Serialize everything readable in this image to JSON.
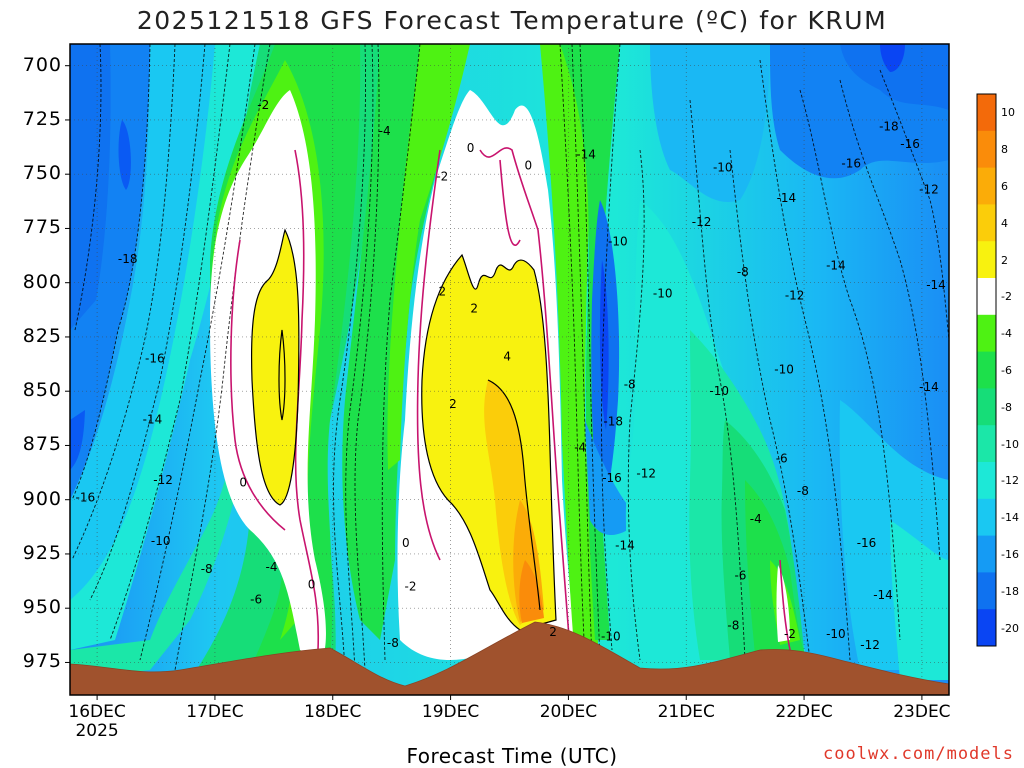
{
  "chart_data": {
    "type": "heatmap",
    "title": "2025121518 GFS Forecast Temperature (ºC) for KRUM",
    "xlabel": "Forecast Time (UTC)",
    "ylabel": "",
    "credit": "coolwx.com/models",
    "y_scale": "pressure (inverted)",
    "y_ticks": [
      "700",
      "725",
      "750",
      "775",
      "800",
      "825",
      "850",
      "875",
      "900",
      "925",
      "950",
      "975"
    ],
    "y_values": [
      700,
      725,
      750,
      775,
      800,
      825,
      850,
      875,
      900,
      925,
      950,
      975
    ],
    "ylim": [
      990,
      690
    ],
    "x_ticks": [
      "16DEC",
      "17DEC",
      "18DEC",
      "19DEC",
      "20DEC",
      "21DEC",
      "22DEC",
      "23DEC"
    ],
    "x_year": "2025",
    "x_days": [
      0,
      1,
      2,
      3,
      4,
      5,
      6,
      7
    ],
    "xlim": [
      -0.23,
      7.23
    ],
    "grid": true,
    "colorbar": {
      "labels": [
        "10",
        "8",
        "6",
        "4",
        "2",
        "-2",
        "-4",
        "-6",
        "-8",
        "-10",
        "-12",
        "-14",
        "-16",
        "-18",
        "-20"
      ],
      "colors": [
        "#f36a0a",
        "#fa8c0a",
        "#fbac08",
        "#fbcd0a",
        "#f8f20f",
        "#ffffff",
        "#4ef213",
        "#1de04b",
        "#16dd78",
        "#1be7a8",
        "#1de8d7",
        "#1ac8f2",
        "#159bf4",
        "#0f72f0",
        "#0a45f3"
      ]
    },
    "contour_labels": [
      {
        "text": "-18",
        "day": 0.26,
        "hPa": 789
      },
      {
        "text": "-16",
        "day": 0.49,
        "hPa": 835
      },
      {
        "text": "-14",
        "day": 0.47,
        "hPa": 863
      },
      {
        "text": "-12",
        "day": 0.56,
        "hPa": 891
      },
      {
        "text": "-10",
        "day": 0.54,
        "hPa": 919
      },
      {
        "text": "-16",
        "day": -0.1,
        "hPa": 899
      },
      {
        "text": "-8",
        "day": 0.93,
        "hPa": 932
      },
      {
        "text": "-6",
        "day": 1.35,
        "hPa": 946
      },
      {
        "text": "-4",
        "day": 1.48,
        "hPa": 931
      },
      {
        "text": "-2",
        "day": 1.41,
        "hPa": 718
      },
      {
        "text": "0",
        "day": 1.24,
        "hPa": 892
      },
      {
        "text": "0",
        "day": 1.82,
        "hPa": 939
      },
      {
        "text": "-4",
        "day": 2.44,
        "hPa": 730
      },
      {
        "text": "-8",
        "day": 2.51,
        "hPa": 966
      },
      {
        "text": "0",
        "day": 2.62,
        "hPa": 920
      },
      {
        "text": "-2",
        "day": 2.66,
        "hPa": 940
      },
      {
        "text": "-2",
        "day": 2.93,
        "hPa": 751
      },
      {
        "text": "0",
        "day": 3.17,
        "hPa": 738
      },
      {
        "text": "0",
        "day": 3.66,
        "hPa": 746
      },
      {
        "text": "2",
        "day": 2.93,
        "hPa": 804
      },
      {
        "text": "2",
        "day": 3.2,
        "hPa": 812
      },
      {
        "text": "4",
        "day": 3.48,
        "hPa": 834
      },
      {
        "text": "2",
        "day": 3.02,
        "hPa": 856
      },
      {
        "text": "2",
        "day": 3.87,
        "hPa": 961
      },
      {
        "text": "-4",
        "day": 4.1,
        "hPa": 876
      },
      {
        "text": "-14",
        "day": 4.15,
        "hPa": 741
      },
      {
        "text": "-10",
        "day": 4.42,
        "hPa": 781
      },
      {
        "text": "-10",
        "day": 4.8,
        "hPa": 805
      },
      {
        "text": "-8",
        "day": 4.52,
        "hPa": 847
      },
      {
        "text": "-18",
        "day": 4.38,
        "hPa": 864
      },
      {
        "text": "-16",
        "day": 4.37,
        "hPa": 890
      },
      {
        "text": "-12",
        "day": 4.66,
        "hPa": 888
      },
      {
        "text": "-14",
        "day": 4.48,
        "hPa": 921
      },
      {
        "text": "-10",
        "day": 4.36,
        "hPa": 963
      },
      {
        "text": "-12",
        "day": 5.13,
        "hPa": 772
      },
      {
        "text": "-10",
        "day": 5.31,
        "hPa": 747
      },
      {
        "text": "-10",
        "day": 5.28,
        "hPa": 850
      },
      {
        "text": "-8",
        "day": 5.48,
        "hPa": 795
      },
      {
        "text": "-8",
        "day": 5.4,
        "hPa": 958
      },
      {
        "text": "-6",
        "day": 5.46,
        "hPa": 935
      },
      {
        "text": "-4",
        "day": 5.59,
        "hPa": 909
      },
      {
        "text": "-6",
        "day": 5.81,
        "hPa": 881
      },
      {
        "text": "-8",
        "day": 5.99,
        "hPa": 896
      },
      {
        "text": "-10",
        "day": 5.83,
        "hPa": 840
      },
      {
        "text": "-12",
        "day": 5.92,
        "hPa": 806
      },
      {
        "text": "-14",
        "day": 5.85,
        "hPa": 761
      },
      {
        "text": "-14",
        "day": 6.27,
        "hPa": 792
      },
      {
        "text": "-2",
        "day": 5.88,
        "hPa": 962
      },
      {
        "text": "-10",
        "day": 6.27,
        "hPa": 962
      },
      {
        "text": "-16",
        "day": 6.4,
        "hPa": 745
      },
      {
        "text": "-18",
        "day": 6.72,
        "hPa": 728
      },
      {
        "text": "-16",
        "day": 6.9,
        "hPa": 736
      },
      {
        "text": "-12",
        "day": 7.06,
        "hPa": 757
      },
      {
        "text": "-14",
        "day": 7.12,
        "hPa": 801
      },
      {
        "text": "-14",
        "day": 7.06,
        "hPa": 848
      },
      {
        "text": "-16",
        "day": 6.53,
        "hPa": 920
      },
      {
        "text": "-14",
        "day": 6.67,
        "hPa": 944
      },
      {
        "text": "-12",
        "day": 6.56,
        "hPa": 967
      }
    ]
  }
}
